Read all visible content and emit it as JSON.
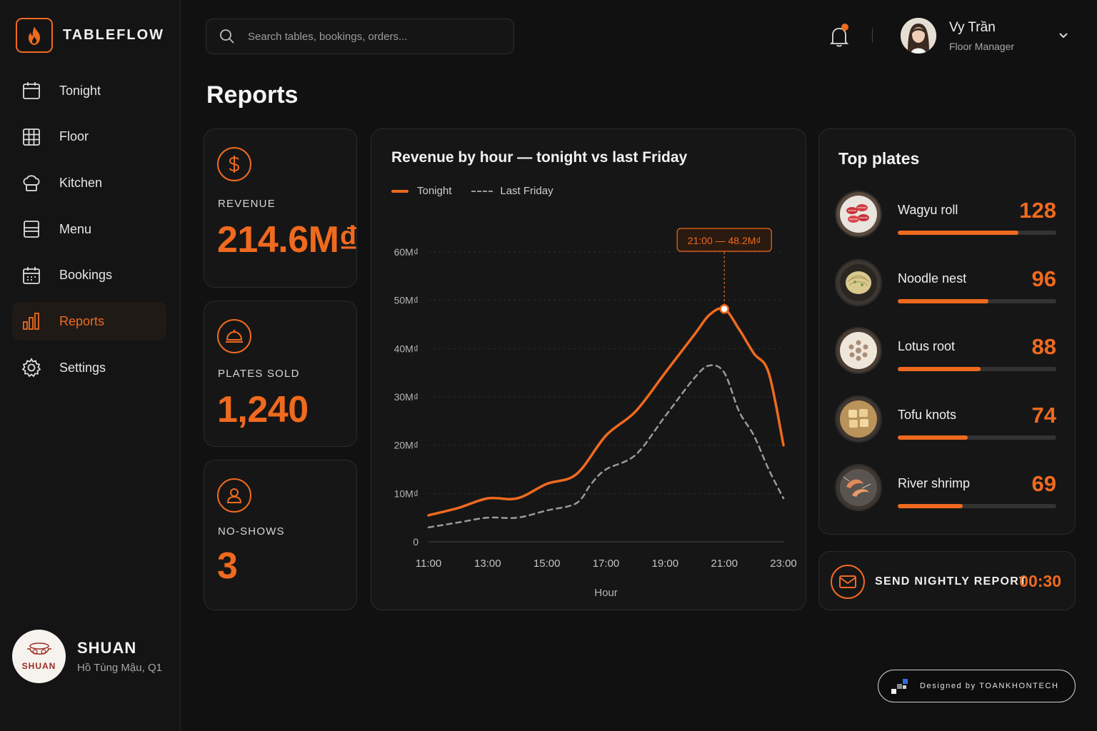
{
  "app": {
    "name": "TABLEFLOW",
    "accent": "#ef6a1f"
  },
  "nav": [
    {
      "label": "Tonight",
      "icon": "calendar-icon",
      "active": false
    },
    {
      "label": "Floor",
      "icon": "grid-icon",
      "active": false
    },
    {
      "label": "Kitchen",
      "icon": "chef-hat-icon",
      "active": false
    },
    {
      "label": "Menu",
      "icon": "menu-book-icon",
      "active": false
    },
    {
      "label": "Bookings",
      "icon": "calendar-check-icon",
      "active": false
    },
    {
      "label": "Reports",
      "icon": "bar-chart-icon",
      "active": true
    },
    {
      "label": "Settings",
      "icon": "gear-icon",
      "active": false
    }
  ],
  "restaurant": {
    "logo_text": "SHUAN",
    "name": "SHUAN",
    "address": "Hồ Tùng Mậu, Q1"
  },
  "search": {
    "placeholder": "Search tables, bookings, orders..."
  },
  "user": {
    "name": "Vy Trần",
    "role": "Floor Manager"
  },
  "page": {
    "title": "Reports"
  },
  "kpis": {
    "revenue": {
      "label": "REVENUE",
      "value": "214.6M₫",
      "icon": "dollar-icon"
    },
    "plates": {
      "label": "PLATES SOLD",
      "value": "1,240",
      "icon": "cloche-icon"
    },
    "noshows": {
      "label": "NO-SHOWS",
      "value": "3",
      "icon": "person-icon"
    }
  },
  "chart_card": {
    "title": "Revenue by hour — tonight vs last Friday",
    "legend_tonight": "Tonight",
    "legend_last": "Last Friday"
  },
  "chart_data": {
    "type": "line",
    "title": "Revenue by hour — tonight vs last Friday",
    "xlabel": "Hour",
    "ylabel": "",
    "x_ticks": [
      "11:00",
      "13:00",
      "15:00",
      "17:00",
      "19:00",
      "21:00",
      "23:00"
    ],
    "y_ticks": [
      "0",
      "10M₫",
      "20M₫",
      "30M₫",
      "40M₫",
      "50M₫",
      "60M₫"
    ],
    "ylim": [
      0,
      60
    ],
    "grid": true,
    "legend": "top-left",
    "series": [
      {
        "name": "Tonight",
        "style": "solid",
        "color": "#ef6a1f",
        "x": [
          11,
          12,
          13,
          14,
          15,
          16,
          17,
          18,
          19,
          20,
          20.5,
          21,
          21.5,
          22,
          22.5,
          23
        ],
        "y": [
          5.5,
          7,
          9,
          9,
          12,
          14,
          22,
          27,
          35,
          43,
          47,
          48.2,
          44,
          39,
          35,
          20
        ]
      },
      {
        "name": "Last Friday",
        "style": "dashed",
        "color": "#9a9a9a",
        "x": [
          11,
          12,
          13,
          14,
          15,
          16,
          16.5,
          17,
          18,
          19,
          20,
          20.5,
          21,
          21.5,
          22,
          22.5,
          23
        ],
        "y": [
          3,
          4,
          5,
          5,
          6.5,
          8,
          12,
          15,
          18,
          26,
          34,
          36.5,
          35,
          27,
          22,
          15,
          9
        ]
      }
    ],
    "annotation": {
      "x": 21,
      "y": 48.2,
      "label": "21:00 — 48.2M₫"
    }
  },
  "top_plates": {
    "title": "Top plates",
    "max": 128,
    "items": [
      {
        "name": "Wagyu roll",
        "count": 128,
        "image": "wagyu-roll-image"
      },
      {
        "name": "Noodle nest",
        "count": 96,
        "image": "noodle-nest-image"
      },
      {
        "name": "Lotus root",
        "count": 88,
        "image": "lotus-root-image"
      },
      {
        "name": "Tofu knots",
        "count": 74,
        "image": "tofu-knots-image"
      },
      {
        "name": "River shrimp",
        "count": 69,
        "image": "river-shrimp-image"
      }
    ]
  },
  "send_report": {
    "label": "SEND NIGHTLY REPORT",
    "time": "00:30",
    "icon": "mail-icon"
  },
  "credit": {
    "text": "Designed by TOANKHONTECH"
  }
}
